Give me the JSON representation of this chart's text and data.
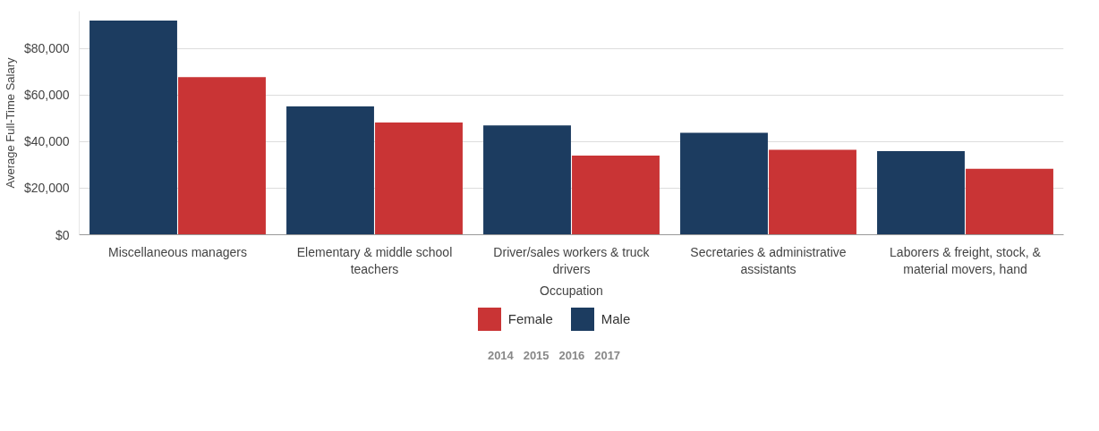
{
  "chart_data": {
    "type": "bar",
    "xlabel": "Occupation",
    "ylabel": "Average Full-Time Salary",
    "categories": [
      "Miscellaneous managers",
      "Elementary & middle school teachers",
      "Driver/sales workers & truck drivers",
      "Secretaries & administrative assistants",
      "Laborers & freight, stock, & material movers, hand"
    ],
    "series": [
      {
        "name": "Male",
        "color": "#1c3c60",
        "values": [
          92000,
          55100,
          46900,
          43800,
          35900
        ]
      },
      {
        "name": "Female",
        "color": "#c93435",
        "values": [
          67700,
          48200,
          34000,
          36500,
          28300
        ]
      }
    ],
    "ylim": [
      0,
      96000
    ],
    "yticks": [
      {
        "value": 0,
        "label": "$0"
      },
      {
        "value": 20000,
        "label": "$20,000"
      },
      {
        "value": 40000,
        "label": "$40,000"
      },
      {
        "value": 60000,
        "label": "$60,000"
      },
      {
        "value": 80000,
        "label": "$80,000"
      }
    ],
    "grid": "y",
    "legend": "bottom",
    "annotations": [
      "2014   2015   2016   2017"
    ]
  }
}
